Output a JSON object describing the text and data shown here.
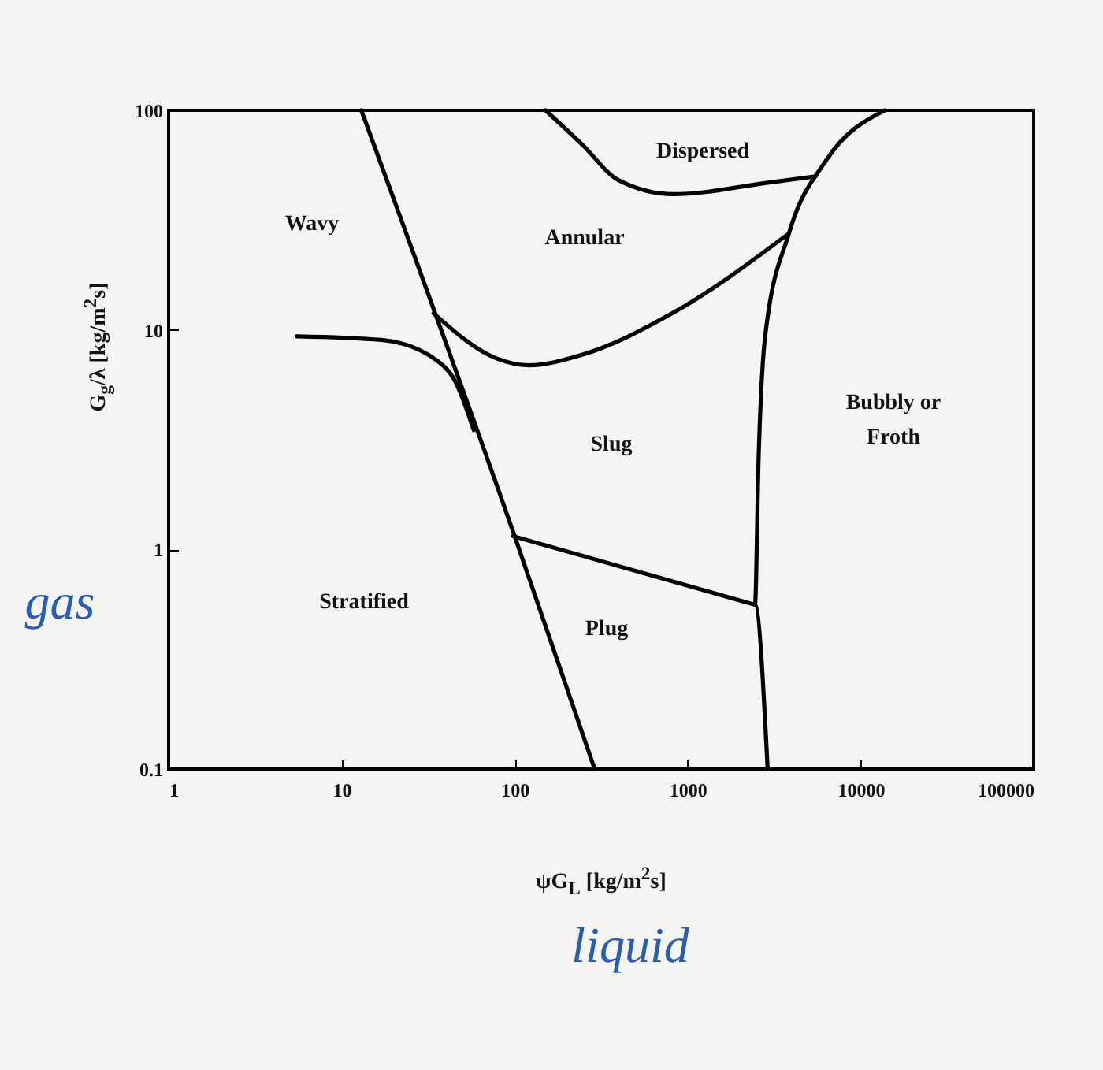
{
  "chart_data": {
    "type": "line",
    "xlabel": "ψG$_{L}$ [kg/m$^{2}$s]",
    "ylabel": "G$_{g}$/λ [kg/m$^{2}$s]",
    "log": "xy",
    "xlim": [
      1,
      100000
    ],
    "ylim": [
      0.1,
      100
    ],
    "xticks": [
      1,
      10,
      100,
      1000,
      10000,
      100000
    ],
    "yticks": [
      0.1,
      1,
      10,
      100
    ],
    "series": [
      {
        "color": "#000000",
        "x": [
          13,
          100,
          290
        ],
        "values": [
          100,
          1.15,
          0.1
        ]
      },
      {
        "color": "#000000",
        "x": [
          5.5,
          17,
          36,
          45,
          58
        ],
        "values": [
          9.35,
          9.0,
          7.2,
          5.9,
          3.5
        ]
      },
      {
        "color": "#000000",
        "x": [
          34,
          79,
          120,
          245,
          830,
          3850
        ],
        "values": [
          11.9,
          7.4,
          6.9,
          7.7,
          12,
          27.5
        ]
      },
      {
        "color": "#000000",
        "x": [
          151,
          245,
          400,
          830,
          2800,
          5500
        ],
        "values": [
          100,
          70,
          48,
          41.5,
          46.6,
          50
        ]
      },
      {
        "color": "#000000",
        "x": [
          13800,
          6300,
          3850,
          2800,
          2570,
          2450,
          2900
        ],
        "values": [
          100,
          59,
          27.5,
          9.2,
          2.57,
          0.56,
          0.1
        ]
      },
      {
        "color": "#000000",
        "x": [
          98,
          2450
        ],
        "values": [
          1.15,
          0.56
        ]
      }
    ],
    "annotations": [
      "Wavy",
      "Annular",
      "Dispersed",
      "Slug",
      "Bubbly or\nFroth",
      "Stratified",
      "Plug",
      "gas",
      "liquid"
    ]
  }
}
